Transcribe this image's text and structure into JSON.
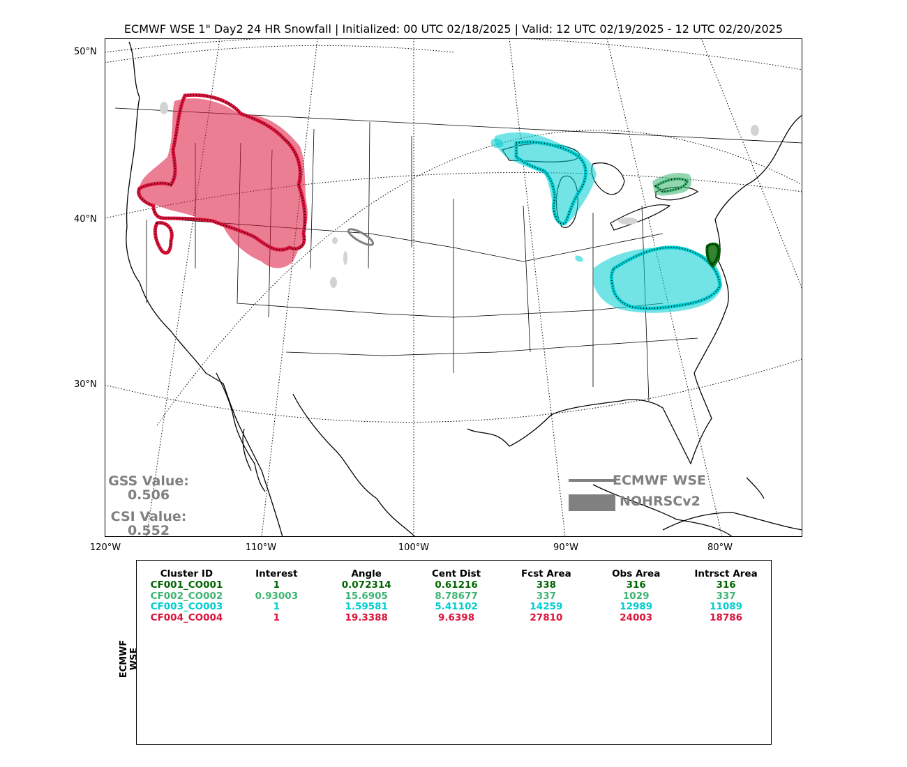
{
  "title": "ECMWF WSE 1\" Day2 24 HR Snowfall | Initialized: 00 UTC 02/18/2025 | Valid: 12 UTC 02/19/2025 - 12 UTC 02/20/2025",
  "lat_labels": [
    "50°N",
    "40°N",
    "30°N"
  ],
  "lon_labels": [
    "120°W",
    "110°W",
    "100°W",
    "90°W",
    "80°W"
  ],
  "scores": {
    "gss_label": "GSS Value:",
    "gss_value": "0.506",
    "csi_label": "CSI Value:",
    "csi_value": "0.552"
  },
  "legend": {
    "forecast_label": "ECMWF WSE",
    "observed_label": "NOHRSCv2",
    "color": "#808080"
  },
  "side_label": "ECMWF WSE",
  "table": {
    "headers": [
      "Cluster ID",
      "Interest",
      "Angle",
      "Cent Dist",
      "Fcst Area",
      "Obs Area",
      "Intrsct Area"
    ],
    "rows": [
      {
        "color": "#006400",
        "cells": [
          "CF001_CO001",
          "1",
          "0.072314",
          "0.61216",
          "338",
          "316",
          "316"
        ]
      },
      {
        "color": "#3cb371",
        "cells": [
          "CF002_CO002",
          "0.93003",
          "15.6905",
          "8.78677",
          "337",
          "1029",
          "337"
        ]
      },
      {
        "color": "#00ced1",
        "cells": [
          "CF003_CO003",
          "1",
          "1.59581",
          "5.41102",
          "14259",
          "12989",
          "11089"
        ]
      },
      {
        "color": "#dc143c",
        "cells": [
          "CF004_CO004",
          "1",
          "19.3388",
          "9.6398",
          "27810",
          "24003",
          "18786"
        ]
      }
    ]
  },
  "map_colors": {
    "cluster1": "#006400",
    "cluster2": "#3cb371",
    "cluster3": "#00ced1",
    "cluster4": "#dc143c",
    "unmatched": "#d3d3d3"
  }
}
